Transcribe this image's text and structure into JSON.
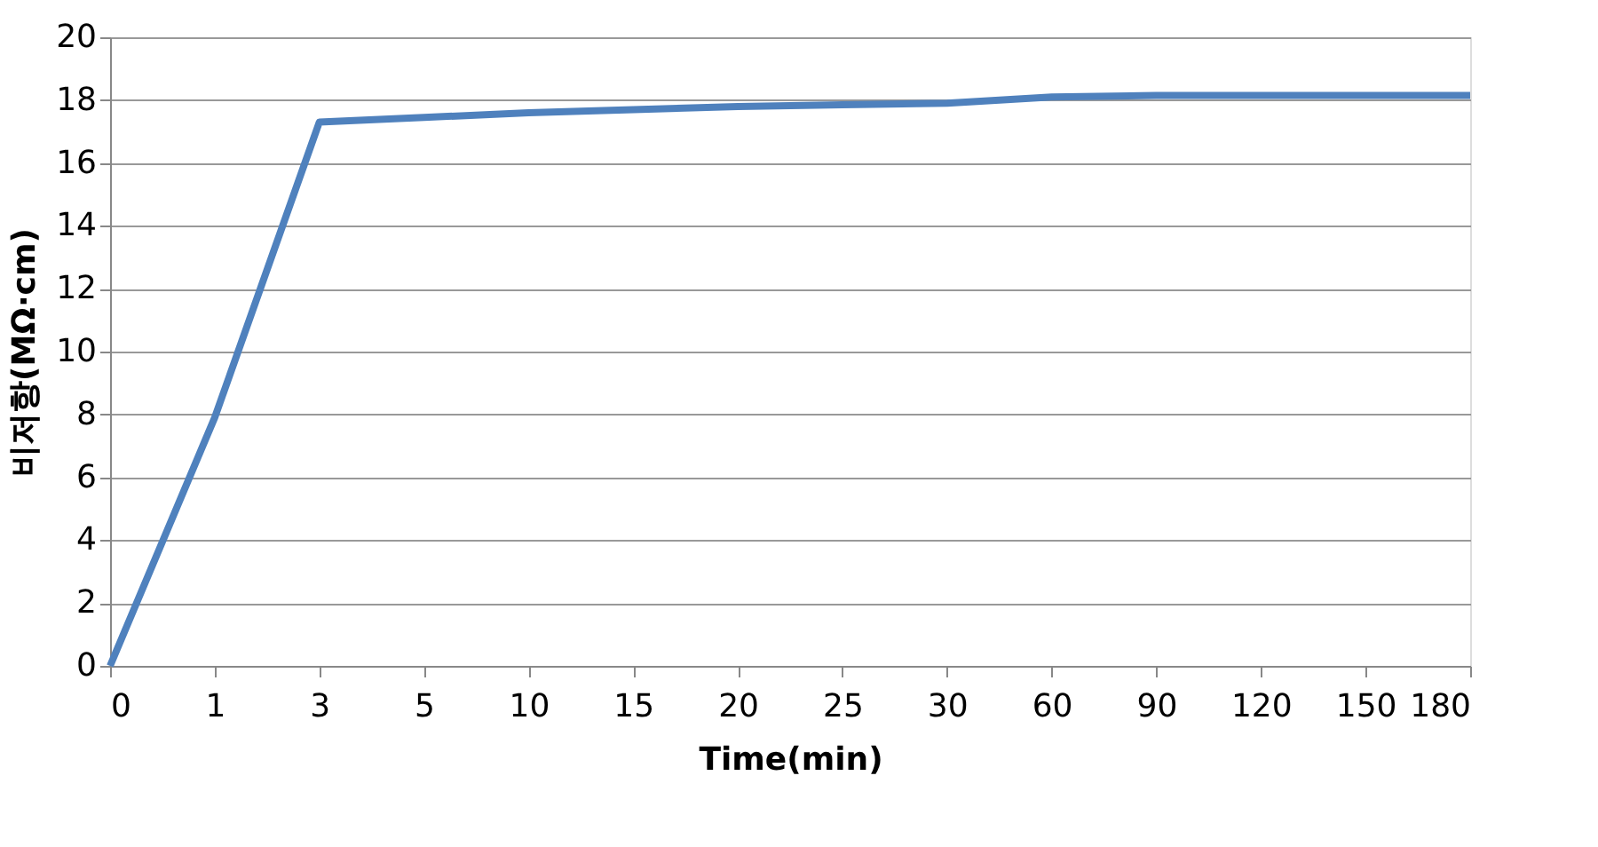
{
  "chart_data": {
    "type": "line",
    "xlabel": "Time(min)",
    "ylabel": "비저항(MΩ·cm)",
    "categories": [
      "0",
      "1",
      "3",
      "5",
      "10",
      "15",
      "20",
      "25",
      "30",
      "60",
      "90",
      "120",
      "150",
      "180"
    ],
    "series": [
      {
        "color": "#4f81bd",
        "values": [
          0,
          7.9,
          17.3,
          17.45,
          17.6,
          17.7,
          17.8,
          17.85,
          17.9,
          18.1,
          18.15,
          18.15,
          18.15,
          18.15
        ]
      }
    ],
    "ylim": [
      0,
      20
    ],
    "yticks": [
      0,
      2,
      4,
      6,
      8,
      10,
      12,
      14,
      16,
      18,
      20
    ],
    "grid": "y",
    "marker": "none",
    "line_style": "solid"
  }
}
